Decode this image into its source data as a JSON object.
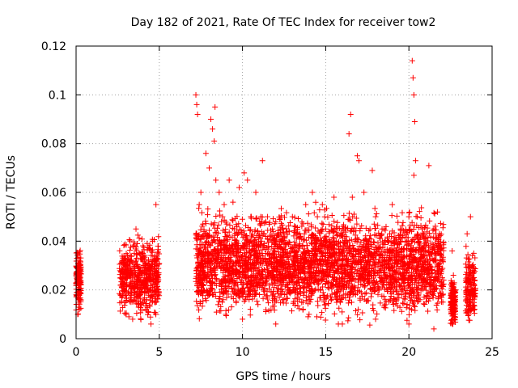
{
  "chart_data": {
    "type": "scatter",
    "title": "Day 182 of 2021, Rate Of TEC Index for receiver tow2",
    "xlabel": "GPS time / hours",
    "ylabel": "ROTI / TECUs",
    "xlim": [
      0,
      25
    ],
    "ylim": [
      0,
      0.12
    ],
    "xticks": [
      "0",
      "5",
      "10",
      "15",
      "20",
      "25"
    ],
    "yticks": [
      "0",
      "0.02",
      "0.04",
      "0.06",
      "0.08",
      "0.1",
      "0.12"
    ],
    "grid": true,
    "marker": "plus",
    "color": "#ff0000",
    "series": [
      {
        "points": [
          [
            0.05,
            0.033
          ],
          [
            0.1,
            0.025
          ],
          [
            0.15,
            0.018
          ],
          [
            0.2,
            0.012
          ],
          [
            0.25,
            0.03
          ],
          [
            0.1,
            0.01
          ],
          [
            0.2,
            0.022
          ],
          [
            0.15,
            0.015
          ],
          [
            2.7,
            0.025
          ],
          [
            2.9,
            0.02
          ],
          [
            3.1,
            0.03
          ],
          [
            3.3,
            0.015
          ],
          [
            3.5,
            0.035
          ],
          [
            3.6,
            0.045
          ],
          [
            3.0,
            0.01
          ],
          [
            3.4,
            0.008
          ],
          [
            3.8,
            0.025
          ],
          [
            4.0,
            0.028
          ],
          [
            4.2,
            0.012
          ],
          [
            4.4,
            0.03
          ],
          [
            4.6,
            0.04
          ],
          [
            4.8,
            0.055
          ],
          [
            4.9,
            0.02
          ],
          [
            4.5,
            0.006
          ],
          [
            7.2,
            0.1
          ],
          [
            7.25,
            0.096
          ],
          [
            7.3,
            0.092
          ],
          [
            7.4,
            0.055
          ],
          [
            7.5,
            0.06
          ],
          [
            7.6,
            0.028
          ],
          [
            7.8,
            0.076
          ],
          [
            8.0,
            0.07
          ],
          [
            8.1,
            0.09
          ],
          [
            8.2,
            0.086
          ],
          [
            8.3,
            0.081
          ],
          [
            8.35,
            0.095
          ],
          [
            8.4,
            0.065
          ],
          [
            8.6,
            0.06
          ],
          [
            8.8,
            0.05
          ],
          [
            8.9,
            0.055
          ],
          [
            9.2,
            0.065
          ],
          [
            9.5,
            0.045
          ],
          [
            9.8,
            0.062
          ],
          [
            10.1,
            0.068
          ],
          [
            10.3,
            0.065
          ],
          [
            10.5,
            0.05
          ],
          [
            10.8,
            0.06
          ],
          [
            11.2,
            0.073
          ],
          [
            11.5,
            0.05
          ],
          [
            11.8,
            0.045
          ],
          [
            12.0,
            0.048
          ],
          [
            12.5,
            0.042
          ],
          [
            13.0,
            0.05
          ],
          [
            13.5,
            0.042
          ],
          [
            13.8,
            0.055
          ],
          [
            14.2,
            0.06
          ],
          [
            14.5,
            0.05
          ],
          [
            14.8,
            0.055
          ],
          [
            15.0,
            0.045
          ],
          [
            15.5,
            0.058
          ],
          [
            16.0,
            0.045
          ],
          [
            16.5,
            0.092
          ],
          [
            16.4,
            0.084
          ],
          [
            16.6,
            0.058
          ],
          [
            16.9,
            0.075
          ],
          [
            17.0,
            0.073
          ],
          [
            17.3,
            0.06
          ],
          [
            17.8,
            0.069
          ],
          [
            18.0,
            0.05
          ],
          [
            18.5,
            0.045
          ],
          [
            19.0,
            0.055
          ],
          [
            19.5,
            0.045
          ],
          [
            20.0,
            0.05
          ],
          [
            20.2,
            0.114
          ],
          [
            20.25,
            0.107
          ],
          [
            20.3,
            0.1
          ],
          [
            20.35,
            0.089
          ],
          [
            20.4,
            0.073
          ],
          [
            20.3,
            0.067
          ],
          [
            20.5,
            0.05
          ],
          [
            20.8,
            0.045
          ],
          [
            21.2,
            0.071
          ],
          [
            21.5,
            0.045
          ],
          [
            21.8,
            0.038
          ],
          [
            22.0,
            0.025
          ],
          [
            22.6,
            0.036
          ],
          [
            22.8,
            0.02
          ],
          [
            23.5,
            0.043
          ],
          [
            23.7,
            0.05
          ],
          [
            23.9,
            0.035
          ],
          [
            23.6,
            0.01
          ],
          [
            23.8,
            0.02
          ],
          [
            10.0,
            0.008
          ],
          [
            12.0,
            0.006
          ],
          [
            14.0,
            0.01
          ],
          [
            16.0,
            0.006
          ],
          [
            18.0,
            0.008
          ],
          [
            20.0,
            0.006
          ],
          [
            21.5,
            0.004
          ],
          [
            9.0,
            0.01
          ]
        ]
      }
    ],
    "dense_bands": [
      {
        "x": [
          0.0,
          0.3
        ],
        "y": [
          0.008,
          0.035
        ]
      },
      {
        "x": [
          2.6,
          5.0
        ],
        "y": [
          0.005,
          0.04
        ]
      },
      {
        "x": [
          7.2,
          22.1
        ],
        "y": [
          0.004,
          0.05
        ]
      },
      {
        "x": [
          22.5,
          22.8
        ],
        "y": [
          0.003,
          0.025
        ]
      },
      {
        "x": [
          23.4,
          24.0
        ],
        "y": [
          0.004,
          0.035
        ]
      }
    ]
  }
}
